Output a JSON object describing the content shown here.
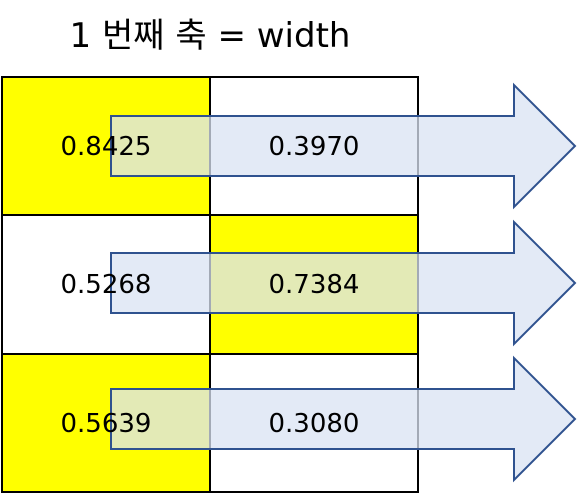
{
  "title": "1 번째 축 = width",
  "colors": {
    "highlight": "#ffff00",
    "plain": "#ffffff",
    "grid_stroke": "#000000",
    "arrow_fill": "#dae3f3",
    "arrow_stroke": "#2f528f"
  },
  "grid": {
    "rows": [
      {
        "cells": [
          {
            "value": "0.8425",
            "highlighted": true
          },
          {
            "value": "0.3970",
            "highlighted": false
          }
        ]
      },
      {
        "cells": [
          {
            "value": "0.5268",
            "highlighted": false
          },
          {
            "value": "0.7384",
            "highlighted": true
          }
        ]
      },
      {
        "cells": [
          {
            "value": "0.5639",
            "highlighted": true
          },
          {
            "value": "0.3080",
            "highlighted": false
          }
        ]
      }
    ]
  }
}
